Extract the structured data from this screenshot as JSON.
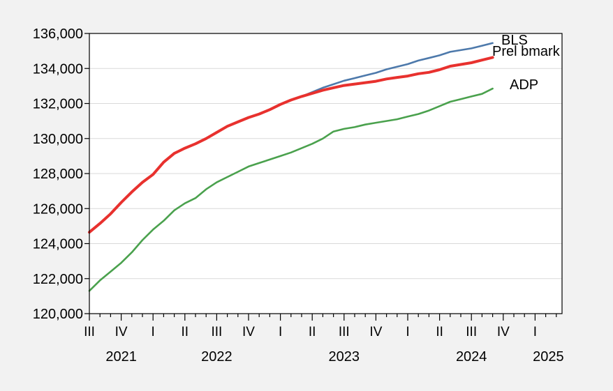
{
  "chart_data": {
    "type": "line",
    "title": "",
    "grid": "horizontal",
    "legend_position": "end-of-line labels inside plot (right)",
    "x_unit": "month",
    "x_axis_start": "2021-07",
    "x_axis_end": "2025-03",
    "ylim": [
      120000,
      136000
    ],
    "y_tick_step": 2000,
    "y_tick_labels": [
      "136,000",
      "134,000",
      "132,000",
      "130,000",
      "128,000",
      "126,000",
      "124,000",
      "122,000",
      "120,000"
    ],
    "y_tick_values": [
      136000,
      134000,
      132000,
      130000,
      128000,
      126000,
      124000,
      122000,
      120000
    ],
    "x_quarter_labels": [
      "III",
      "IV",
      "I",
      "II",
      "III",
      "IV",
      "I",
      "II",
      "III",
      "IV",
      "I",
      "II",
      "III",
      "IV",
      "I"
    ],
    "x_quarter_label_months": [
      0,
      3,
      6,
      9,
      12,
      15,
      18,
      21,
      24,
      27,
      30,
      33,
      36,
      39,
      42
    ],
    "x_year_labels": [
      "2021",
      "2022",
      "2023",
      "2024",
      "2025"
    ],
    "months": [
      "2021-07",
      "2021-08",
      "2021-09",
      "2021-10",
      "2021-11",
      "2021-12",
      "2022-01",
      "2022-02",
      "2022-03",
      "2022-04",
      "2022-05",
      "2022-06",
      "2022-07",
      "2022-08",
      "2022-09",
      "2022-10",
      "2022-11",
      "2022-12",
      "2023-01",
      "2023-02",
      "2023-03",
      "2023-04",
      "2023-05",
      "2023-06",
      "2023-07",
      "2023-08",
      "2023-09",
      "2023-10",
      "2023-11",
      "2023-12",
      "2024-01",
      "2024-02",
      "2024-03",
      "2024-04",
      "2024-05",
      "2024-06",
      "2024-07",
      "2024-08",
      "2024-09"
    ],
    "series": [
      {
        "name": "BLS",
        "label": "BLS",
        "color": "#4d79ab",
        "label_color": "#1f4da6",
        "line_width": 2.6,
        "values": [
          124650,
          125150,
          125700,
          126350,
          126950,
          127500,
          127950,
          128650,
          129150,
          129450,
          129700,
          130000,
          130350,
          130700,
          130950,
          131200,
          131400,
          131650,
          131950,
          132200,
          132400,
          132650,
          132900,
          133100,
          133300,
          133450,
          133600,
          133750,
          133950,
          134100,
          134250,
          134450,
          134600,
          134750,
          134950,
          135050,
          135150,
          135300,
          135450
        ]
      },
      {
        "name": "Prel bmark",
        "label": "Prel bmark",
        "color": "#e8312e",
        "label_color": "#ff0000",
        "line_width": 4,
        "values": [
          124650,
          125150,
          125700,
          126350,
          126950,
          127500,
          127950,
          128650,
          129150,
          129450,
          129700,
          130000,
          130350,
          130700,
          130950,
          131200,
          131400,
          131650,
          131950,
          132200,
          132400,
          132580,
          132760,
          132900,
          133030,
          133110,
          133190,
          133270,
          133400,
          133490,
          133570,
          133700,
          133780,
          133930,
          134130,
          134230,
          134330,
          134480,
          134630
        ]
      },
      {
        "name": "ADP",
        "label": "ADP",
        "color": "#4aa14d",
        "label_color": "#009b00",
        "line_width": 2.6,
        "values": [
          121300,
          121900,
          122400,
          122900,
          123500,
          124200,
          124800,
          125300,
          125900,
          126300,
          126600,
          127100,
          127500,
          127800,
          128100,
          128400,
          128600,
          128800,
          129000,
          129200,
          129450,
          129700,
          130000,
          130400,
          130550,
          130650,
          130800,
          130900,
          131000,
          131100,
          131250,
          131400,
          131600,
          131850,
          132100,
          132250,
          132400,
          132550,
          132850
        ]
      }
    ],
    "colors": {
      "background": "#f2f2f2",
      "plot_background": "#ffffff",
      "frame": "#000000",
      "gridline": "#d9d9d9"
    }
  }
}
